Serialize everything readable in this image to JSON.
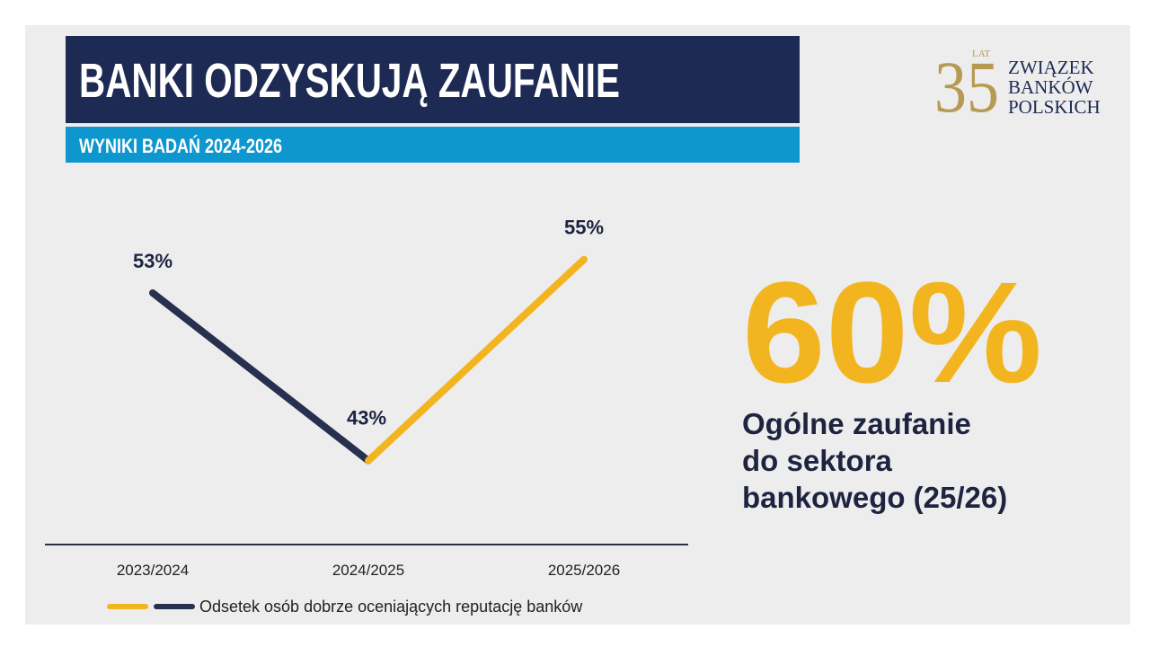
{
  "header": {
    "title": "BANKI ODZYSKUJĄ ZAUFANIE",
    "subtitle": "WYNIKI BADAŃ 2024-2026"
  },
  "logo": {
    "number": "35",
    "years": "LAT",
    "lines": [
      "ZWIĄZEK",
      "BANKÓW",
      "POLSKICH"
    ]
  },
  "highlight": {
    "value": "60%",
    "lines": [
      "Ogólne zaufanie",
      "do sektora",
      "bankowego (25/26)"
    ]
  },
  "chart_data": {
    "type": "line",
    "categories": [
      "2023/2024",
      "2024/2025",
      "2025/2026"
    ],
    "series": [
      {
        "name": "Odsetek osób dobrze oceniających reputację banków",
        "segment_colors": [
          "#27304f",
          "#f2b51f"
        ],
        "values": [
          53,
          43,
          55
        ],
        "value_labels": [
          "53%",
          "43%",
          "55%"
        ]
      }
    ],
    "ylim": [
      38,
      56
    ]
  }
}
